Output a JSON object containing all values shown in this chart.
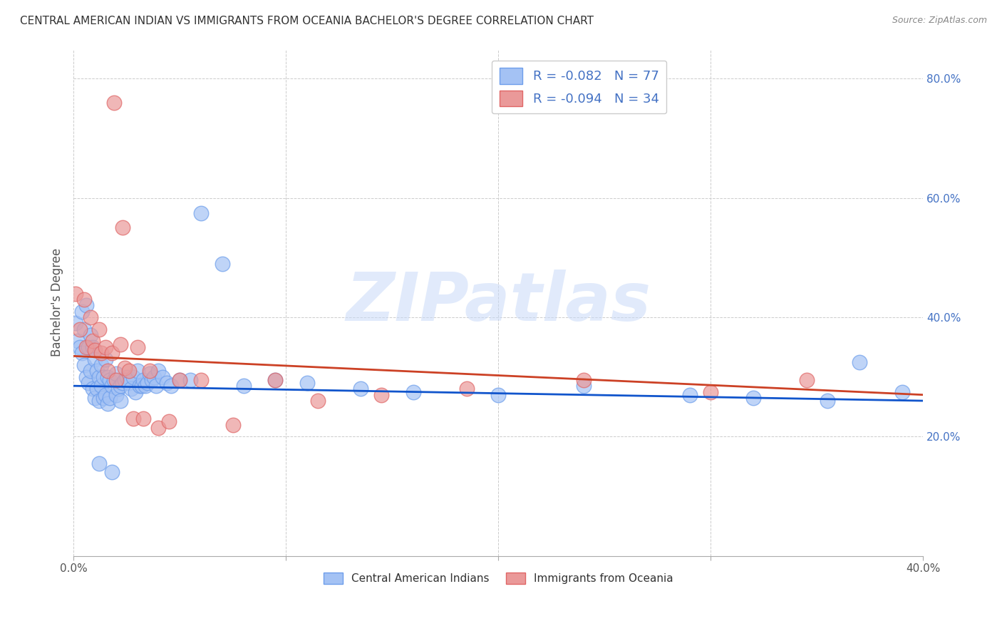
{
  "title": "CENTRAL AMERICAN INDIAN VS IMMIGRANTS FROM OCEANIA BACHELOR'S DEGREE CORRELATION CHART",
  "source": "Source: ZipAtlas.com",
  "ylabel": "Bachelor's Degree",
  "watermark": "ZIPatlas",
  "xlim": [
    0.0,
    0.4
  ],
  "ylim": [
    0.0,
    0.85
  ],
  "xtick_positions": [
    0.0,
    0.1,
    0.2,
    0.3,
    0.4
  ],
  "xtick_labels": [
    "0.0%",
    "",
    "",
    "",
    "40.0%"
  ],
  "ytick_positions": [
    0.2,
    0.4,
    0.6,
    0.8
  ],
  "ytick_labels": [
    "20.0%",
    "40.0%",
    "60.0%",
    "80.0%"
  ],
  "blue_color": "#a4c2f4",
  "pink_color": "#ea9999",
  "blue_edge_color": "#6d9eeb",
  "pink_edge_color": "#e06666",
  "blue_line_color": "#1155cc",
  "pink_line_color": "#cc4125",
  "legend_blue_label": "R = -0.082   N = 77",
  "legend_pink_label": "R = -0.094   N = 34",
  "legend_label_blue": "Central American Indians",
  "legend_label_pink": "Immigrants from Oceania",
  "blue_line_x0": 0.0,
  "blue_line_y0": 0.285,
  "blue_line_x1": 0.4,
  "blue_line_y1": 0.26,
  "pink_line_x0": 0.0,
  "pink_line_y0": 0.335,
  "pink_line_x1": 0.4,
  "pink_line_y1": 0.27,
  "blue_x": [
    0.001,
    0.002,
    0.003,
    0.004,
    0.004,
    0.005,
    0.005,
    0.006,
    0.006,
    0.007,
    0.007,
    0.008,
    0.008,
    0.009,
    0.009,
    0.01,
    0.01,
    0.011,
    0.011,
    0.012,
    0.012,
    0.013,
    0.013,
    0.014,
    0.014,
    0.015,
    0.015,
    0.016,
    0.016,
    0.017,
    0.017,
    0.018,
    0.019,
    0.02,
    0.02,
    0.021,
    0.022,
    0.022,
    0.023,
    0.024,
    0.025,
    0.026,
    0.027,
    0.028,
    0.029,
    0.03,
    0.031,
    0.032,
    0.033,
    0.034,
    0.035,
    0.036,
    0.037,
    0.038,
    0.039,
    0.04,
    0.042,
    0.044,
    0.046,
    0.05,
    0.055,
    0.06,
    0.07,
    0.08,
    0.095,
    0.11,
    0.135,
    0.16,
    0.2,
    0.24,
    0.29,
    0.32,
    0.355,
    0.37,
    0.39,
    0.012,
    0.018
  ],
  "blue_y": [
    0.39,
    0.36,
    0.35,
    0.34,
    0.41,
    0.32,
    0.38,
    0.3,
    0.42,
    0.35,
    0.29,
    0.37,
    0.31,
    0.35,
    0.28,
    0.33,
    0.265,
    0.31,
    0.28,
    0.3,
    0.26,
    0.32,
    0.285,
    0.3,
    0.265,
    0.33,
    0.27,
    0.3,
    0.255,
    0.295,
    0.265,
    0.285,
    0.295,
    0.27,
    0.305,
    0.28,
    0.285,
    0.26,
    0.29,
    0.295,
    0.3,
    0.29,
    0.28,
    0.3,
    0.275,
    0.31,
    0.285,
    0.285,
    0.295,
    0.285,
    0.29,
    0.305,
    0.295,
    0.3,
    0.285,
    0.31,
    0.3,
    0.29,
    0.285,
    0.295,
    0.295,
    0.575,
    0.49,
    0.285,
    0.295,
    0.29,
    0.28,
    0.275,
    0.27,
    0.285,
    0.27,
    0.265,
    0.26,
    0.325,
    0.275,
    0.155,
    0.14
  ],
  "pink_x": [
    0.001,
    0.003,
    0.005,
    0.006,
    0.008,
    0.009,
    0.01,
    0.012,
    0.013,
    0.015,
    0.016,
    0.018,
    0.02,
    0.022,
    0.024,
    0.026,
    0.028,
    0.03,
    0.033,
    0.036,
    0.04,
    0.045,
    0.05,
    0.06,
    0.075,
    0.095,
    0.115,
    0.145,
    0.185,
    0.24,
    0.3,
    0.345,
    0.019,
    0.023
  ],
  "pink_y": [
    0.44,
    0.38,
    0.43,
    0.35,
    0.4,
    0.36,
    0.345,
    0.38,
    0.34,
    0.35,
    0.31,
    0.34,
    0.295,
    0.355,
    0.315,
    0.31,
    0.23,
    0.35,
    0.23,
    0.31,
    0.215,
    0.225,
    0.295,
    0.295,
    0.22,
    0.295,
    0.26,
    0.27,
    0.28,
    0.295,
    0.275,
    0.295,
    0.76,
    0.55
  ]
}
